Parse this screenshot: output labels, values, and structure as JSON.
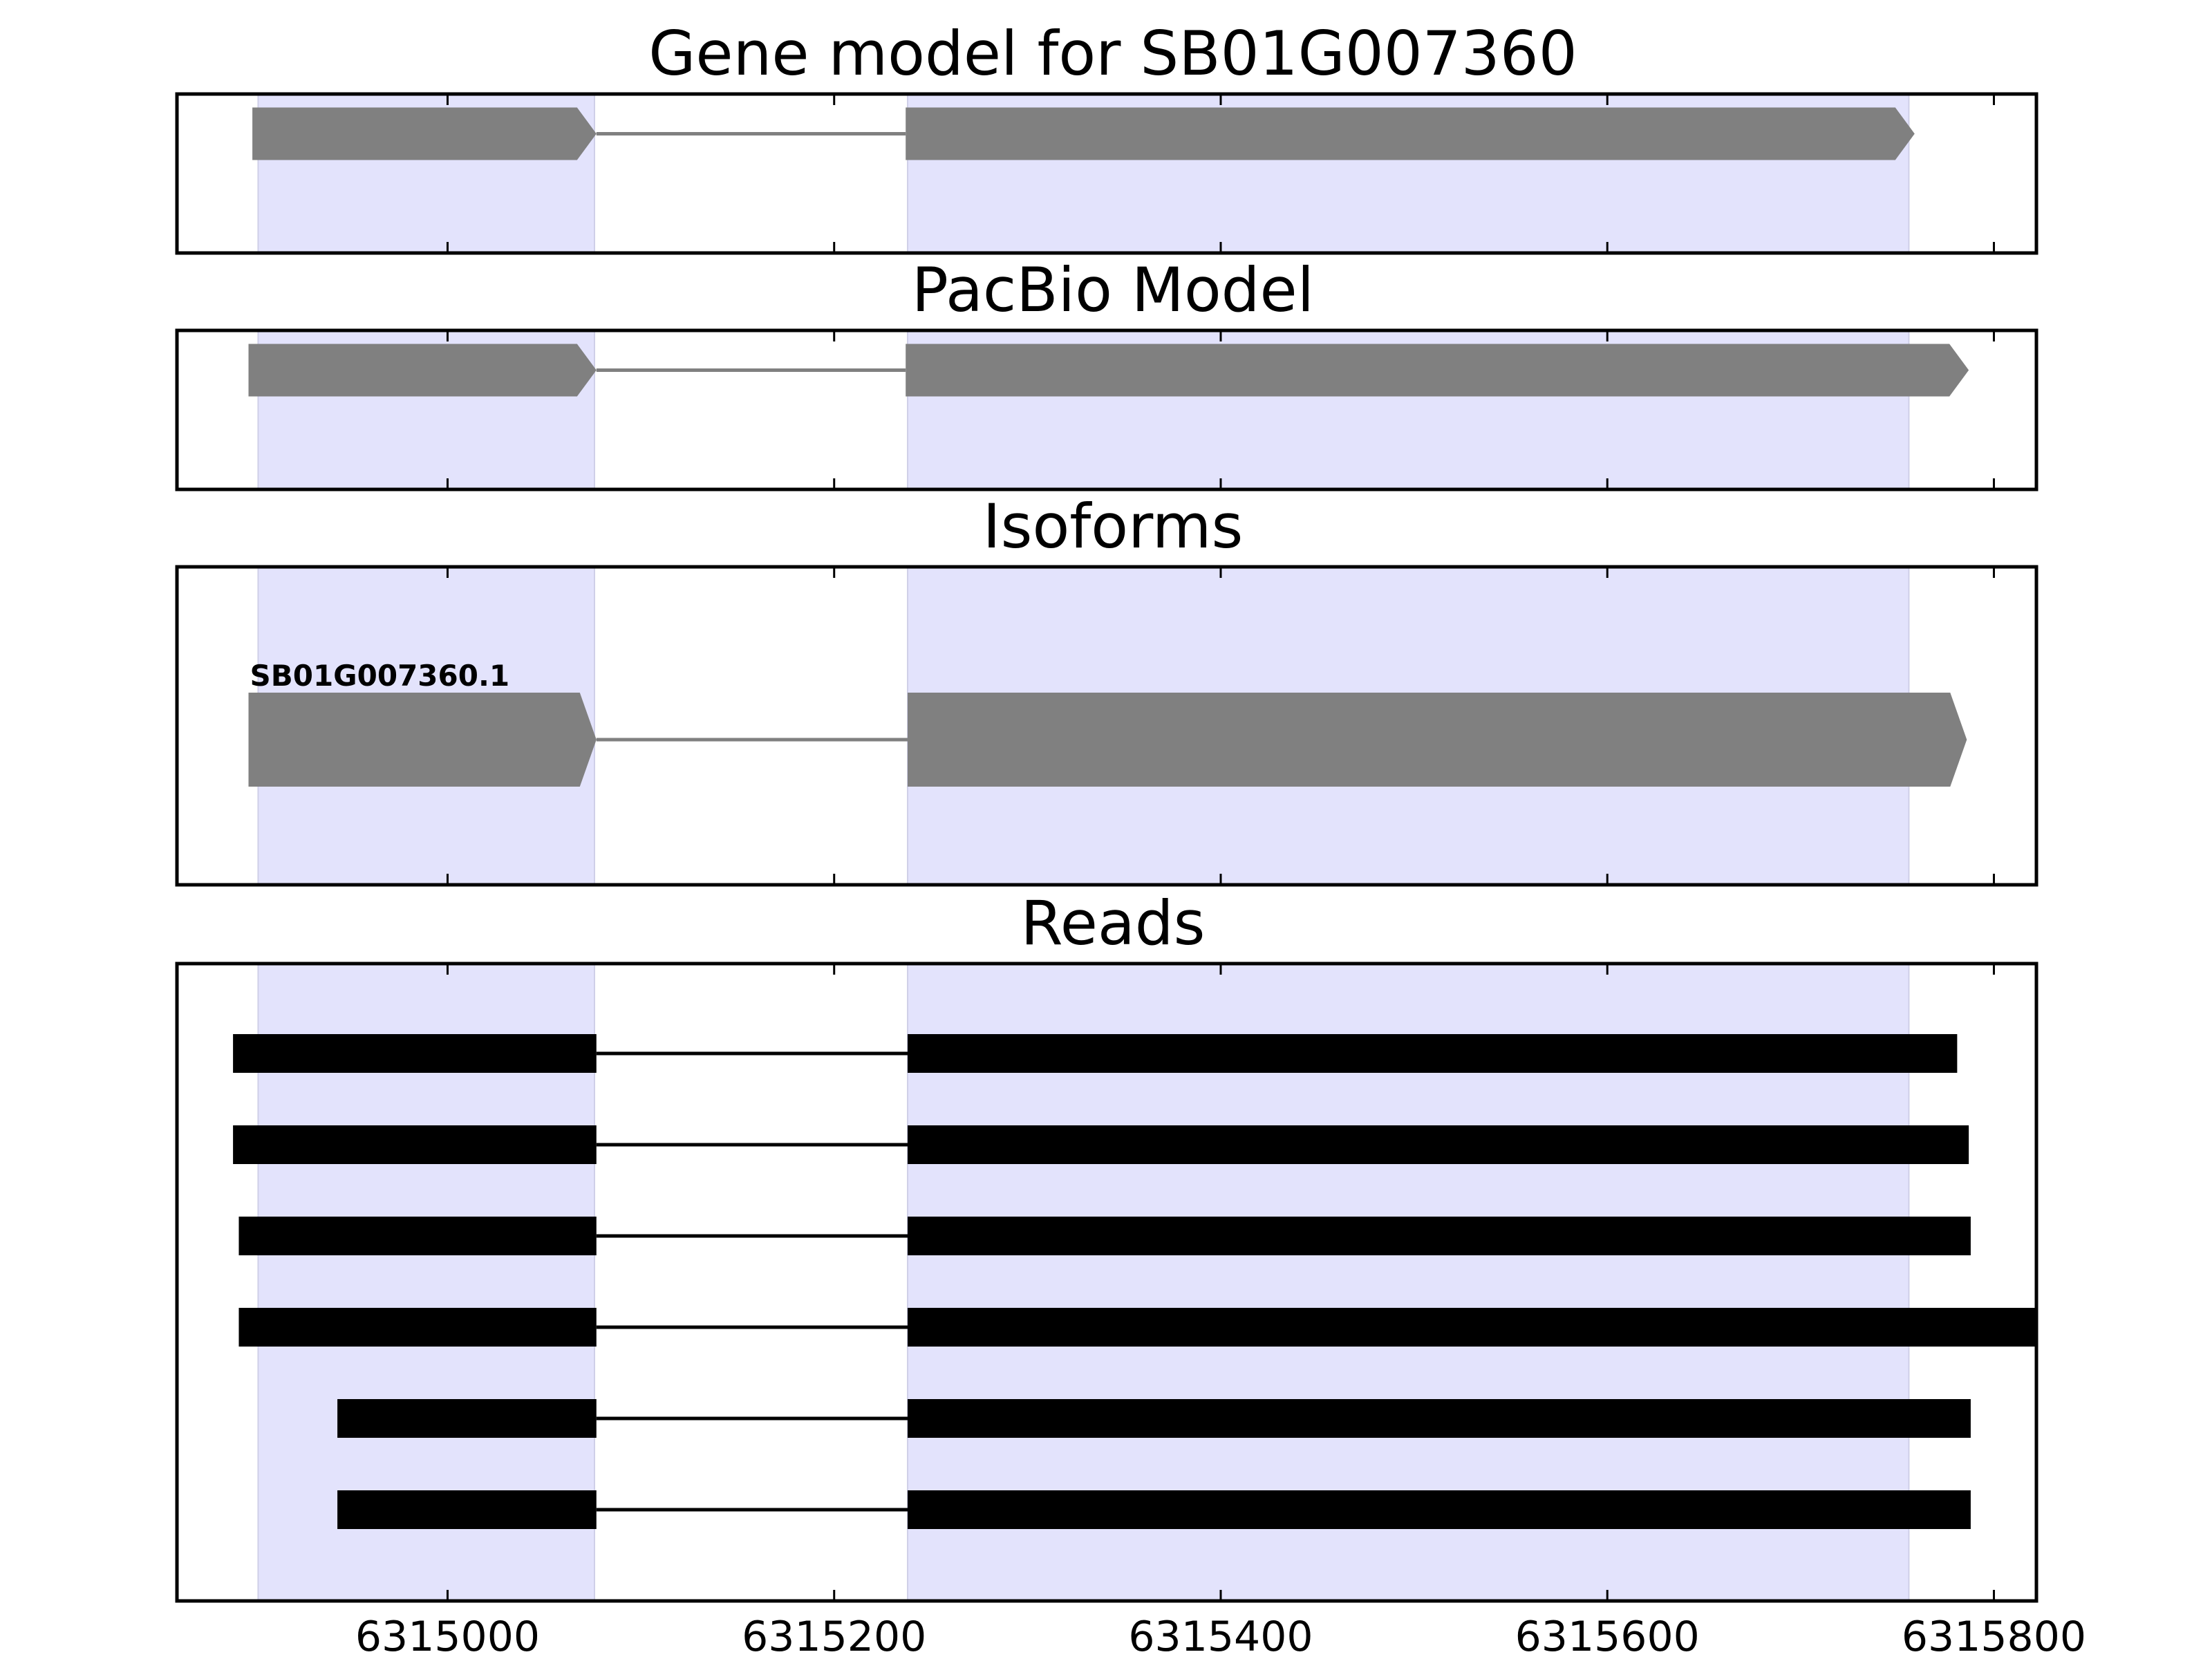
{
  "chart_data": {
    "type": "gene-structure",
    "xlim": [
      6314860,
      6315822
    ],
    "xticks": [
      6315000,
      6315200,
      6315400,
      6315600,
      6315800
    ],
    "xtick_labels": [
      "6315000",
      "6315200",
      "6315400",
      "6315600",
      "6315800"
    ],
    "highlight_regions": [
      [
        6314902,
        6315076
      ],
      [
        6315238,
        6315756
      ]
    ],
    "highlight_color": "#e3e3fc",
    "feature_color": "#808080",
    "read_color": "#000000",
    "panels": [
      {
        "key": "gene",
        "title": "Gene model for SB01G007360",
        "exons": [
          [
            6314899,
            6315077
          ],
          [
            6315237,
            6315759
          ]
        ],
        "strand": "+"
      },
      {
        "key": "pacbio",
        "title": "PacBio Model",
        "exons": [
          [
            6314897,
            6315077
          ],
          [
            6315237,
            6315787
          ]
        ],
        "strand": "+"
      },
      {
        "key": "isoforms",
        "title": "Isoforms",
        "isoforms": [
          {
            "label": "SB01G007360.1",
            "exons": [
              [
                6314897,
                6315077
              ],
              [
                6315238,
                6315786
              ]
            ],
            "strand": "+"
          }
        ]
      },
      {
        "key": "reads",
        "title": "Reads",
        "reads": [
          {
            "exons": [
              [
                6314889,
                6315077
              ],
              [
                6315238,
                6315781
              ]
            ]
          },
          {
            "exons": [
              [
                6314889,
                6315077
              ],
              [
                6315238,
                6315787
              ]
            ]
          },
          {
            "exons": [
              [
                6314892,
                6315077
              ],
              [
                6315238,
                6315788
              ]
            ]
          },
          {
            "exons": [
              [
                6314892,
                6315077
              ],
              [
                6315238,
                6315822
              ]
            ]
          },
          {
            "exons": [
              [
                6314943,
                6315077
              ],
              [
                6315238,
                6315788
              ]
            ]
          },
          {
            "exons": [
              [
                6314943,
                6315077
              ],
              [
                6315238,
                6315788
              ]
            ]
          }
        ]
      }
    ]
  }
}
